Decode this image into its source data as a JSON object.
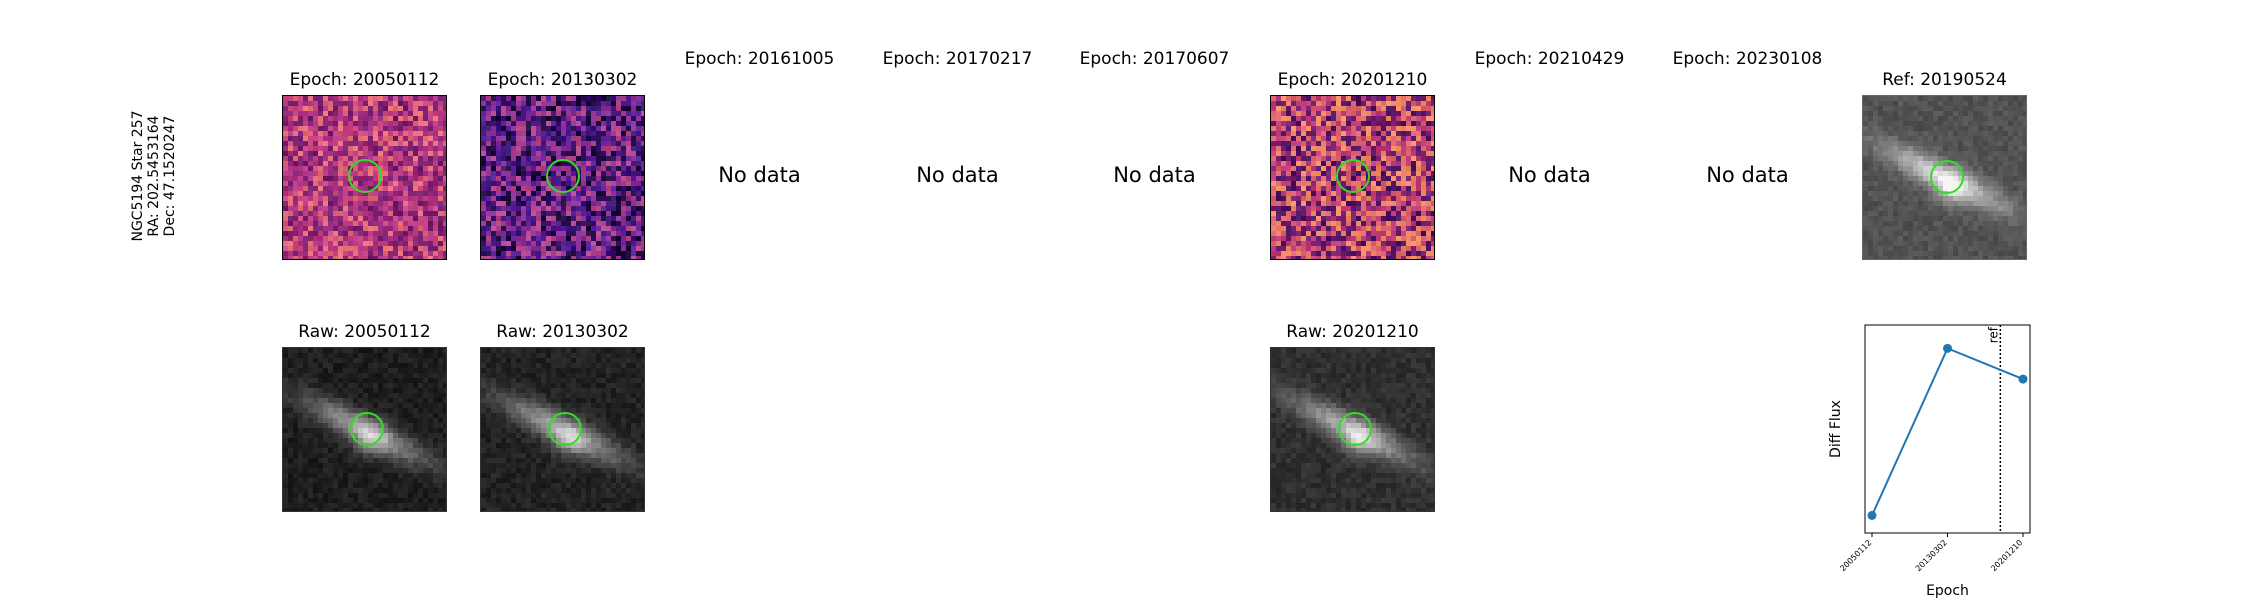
{
  "row_label": {
    "name": "NGC5194 Star 257",
    "ra": "RA: 202.5453164",
    "dec": "Dec: 47.1520247"
  },
  "epoch_titles": [
    "Epoch: 20050112",
    "Epoch: 20130302",
    "Epoch: 20161005",
    "Epoch: 20170217",
    "Epoch: 20170607",
    "Epoch: 20201210",
    "Epoch: 20210429",
    "Epoch: 20230108"
  ],
  "ref_title": "Ref: 20190524",
  "no_data_text": "No data",
  "raw_titles": {
    "0": "Raw: 20050112",
    "1": "Raw: 20130302",
    "5": "Raw: 20201210"
  },
  "colors": {
    "marker_circle": "#33dd22",
    "series_line": "#1f77b4",
    "diff_map_a": "#c83f82",
    "diff_map_b": "#5a1f8c",
    "diff_map_c": "#c44a7d"
  },
  "chart_data": {
    "type": "line",
    "xlabel": "Epoch",
    "ylabel": "Diff Flux",
    "categories": [
      "20050112",
      "20130302",
      "20201210"
    ],
    "series": [
      {
        "values": [
          0.05,
          0.92,
          0.76
        ]
      }
    ],
    "ylim": [
      0,
      1
    ],
    "vline": {
      "label": "ref",
      "position_category": "20190524",
      "style": "dotted"
    },
    "grid": false
  }
}
